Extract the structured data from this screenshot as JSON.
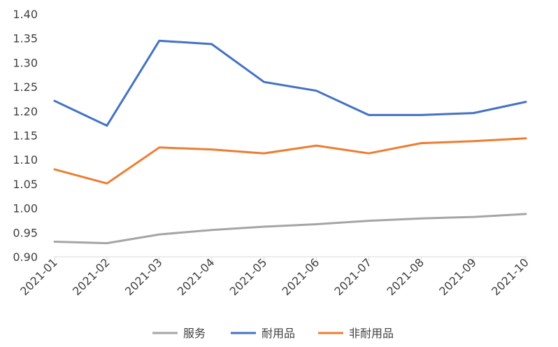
{
  "chart_data": {
    "type": "line",
    "title": "",
    "xlabel": "",
    "ylabel": "",
    "categories": [
      "2021-01",
      "2021-02",
      "2021-03",
      "2021-04",
      "2021-05",
      "2021-06",
      "2021-07",
      "2021-08",
      "2021-09",
      "2021-10"
    ],
    "ylim": [
      0.9,
      1.4
    ],
    "yticks": [
      "0.90",
      "0.95",
      "1.00",
      "1.05",
      "1.10",
      "1.15",
      "1.20",
      "1.25",
      "1.30",
      "1.35",
      "1.40"
    ],
    "grid": false,
    "legend_position": "bottom",
    "series": [
      {
        "name": "服务",
        "color": "#a5a5a5",
        "values": [
          0.931,
          0.928,
          0.946,
          0.955,
          0.962,
          0.967,
          0.974,
          0.979,
          0.982,
          0.988
        ]
      },
      {
        "name": "耐用品",
        "color": "#4472c4",
        "values": [
          1.221,
          1.17,
          1.345,
          1.338,
          1.26,
          1.242,
          1.192,
          1.192,
          1.196,
          1.219
        ]
      },
      {
        "name": "非耐用品",
        "color": "#ed7d31",
        "values": [
          1.08,
          1.051,
          1.125,
          1.121,
          1.113,
          1.129,
          1.113,
          1.134,
          1.138,
          1.144
        ]
      }
    ]
  }
}
